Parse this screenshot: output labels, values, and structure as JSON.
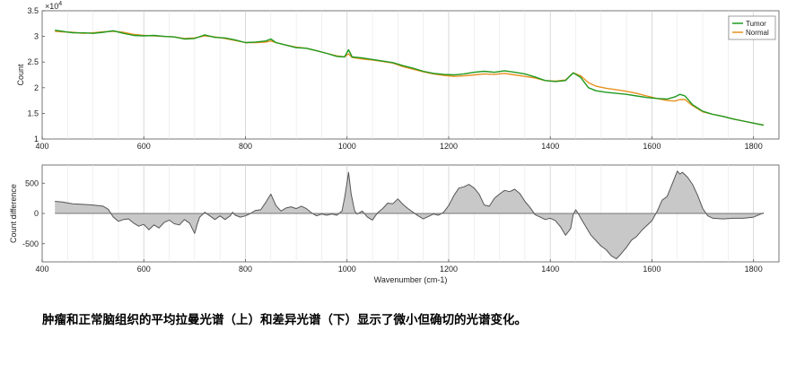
{
  "caption": "肿瘤和正常脑组织的平均拉曼光谱（上）和差异光谱（下）显示了微小但确切的光谱变化。",
  "chart_data": [
    {
      "type": "line",
      "xlabel": "",
      "ylabel": "Count",
      "xlim": [
        400,
        1850
      ],
      "ylim": [
        1,
        3.5
      ],
      "y_multiplier": "x10^4",
      "xticks": [
        "400",
        "600",
        "800",
        "1000",
        "1200",
        "1400",
        "1600",
        "1800"
      ],
      "yticks": [
        "1",
        "1.5",
        "2",
        "2.5",
        "3",
        "3.5"
      ],
      "grid": "vertical",
      "legend_position": "top-right",
      "series": [
        {
          "name": "Tumor",
          "color": "#1f9a1f",
          "points": [
            [
              425,
              3.12
            ],
            [
              440,
              3.1
            ],
            [
              460,
              3.07
            ],
            [
              480,
              3.07
            ],
            [
              500,
              3.06
            ],
            [
              520,
              3.08
            ],
            [
              540,
              3.11
            ],
            [
              560,
              3.06
            ],
            [
              580,
              3.02
            ],
            [
              600,
              3.01
            ],
            [
              620,
              3.02
            ],
            [
              640,
              3.0
            ],
            [
              660,
              2.99
            ],
            [
              680,
              2.95
            ],
            [
              700,
              2.96
            ],
            [
              720,
              3.03
            ],
            [
              740,
              2.98
            ],
            [
              760,
              2.97
            ],
            [
              780,
              2.93
            ],
            [
              800,
              2.88
            ],
            [
              820,
              2.89
            ],
            [
              840,
              2.91
            ],
            [
              850,
              2.95
            ],
            [
              860,
              2.88
            ],
            [
              880,
              2.83
            ],
            [
              900,
              2.78
            ],
            [
              920,
              2.77
            ],
            [
              940,
              2.72
            ],
            [
              960,
              2.67
            ],
            [
              980,
              2.61
            ],
            [
              995,
              2.6
            ],
            [
              1003,
              2.74
            ],
            [
              1010,
              2.6
            ],
            [
              1030,
              2.58
            ],
            [
              1050,
              2.55
            ],
            [
              1070,
              2.52
            ],
            [
              1090,
              2.49
            ],
            [
              1110,
              2.43
            ],
            [
              1130,
              2.38
            ],
            [
              1150,
              2.32
            ],
            [
              1170,
              2.28
            ],
            [
              1190,
              2.26
            ],
            [
              1210,
              2.25
            ],
            [
              1230,
              2.27
            ],
            [
              1250,
              2.3
            ],
            [
              1270,
              2.32
            ],
            [
              1290,
              2.3
            ],
            [
              1310,
              2.33
            ],
            [
              1330,
              2.3
            ],
            [
              1350,
              2.27
            ],
            [
              1370,
              2.21
            ],
            [
              1390,
              2.14
            ],
            [
              1410,
              2.12
            ],
            [
              1430,
              2.14
            ],
            [
              1445,
              2.29
            ],
            [
              1460,
              2.2
            ],
            [
              1475,
              2.0
            ],
            [
              1490,
              1.94
            ],
            [
              1510,
              1.91
            ],
            [
              1530,
              1.89
            ],
            [
              1550,
              1.87
            ],
            [
              1570,
              1.84
            ],
            [
              1590,
              1.81
            ],
            [
              1610,
              1.79
            ],
            [
              1630,
              1.78
            ],
            [
              1645,
              1.82
            ],
            [
              1655,
              1.87
            ],
            [
              1665,
              1.84
            ],
            [
              1680,
              1.67
            ],
            [
              1700,
              1.54
            ],
            [
              1720,
              1.48
            ],
            [
              1740,
              1.44
            ],
            [
              1760,
              1.39
            ],
            [
              1780,
              1.35
            ],
            [
              1800,
              1.31
            ],
            [
              1820,
              1.27
            ]
          ]
        },
        {
          "name": "Normal",
          "color": "#e8901e",
          "points": [
            [
              425,
              3.1
            ],
            [
              440,
              3.09
            ],
            [
              460,
              3.08
            ],
            [
              480,
              3.06
            ],
            [
              500,
              3.07
            ],
            [
              520,
              3.09
            ],
            [
              540,
              3.1
            ],
            [
              560,
              3.08
            ],
            [
              580,
              3.04
            ],
            [
              600,
              3.02
            ],
            [
              620,
              3.01
            ],
            [
              640,
              3.0
            ],
            [
              660,
              2.99
            ],
            [
              680,
              2.96
            ],
            [
              700,
              2.97
            ],
            [
              720,
              3.01
            ],
            [
              740,
              2.99
            ],
            [
              760,
              2.96
            ],
            [
              780,
              2.92
            ],
            [
              800,
              2.88
            ],
            [
              820,
              2.88
            ],
            [
              840,
              2.89
            ],
            [
              850,
              2.91
            ],
            [
              860,
              2.88
            ],
            [
              880,
              2.83
            ],
            [
              900,
              2.79
            ],
            [
              920,
              2.77
            ],
            [
              940,
              2.72
            ],
            [
              960,
              2.67
            ],
            [
              980,
              2.62
            ],
            [
              995,
              2.6
            ],
            [
              1003,
              2.66
            ],
            [
              1010,
              2.59
            ],
            [
              1030,
              2.56
            ],
            [
              1050,
              2.54
            ],
            [
              1070,
              2.51
            ],
            [
              1090,
              2.48
            ],
            [
              1110,
              2.41
            ],
            [
              1130,
              2.36
            ],
            [
              1150,
              2.31
            ],
            [
              1170,
              2.27
            ],
            [
              1190,
              2.24
            ],
            [
              1210,
              2.22
            ],
            [
              1230,
              2.23
            ],
            [
              1250,
              2.25
            ],
            [
              1270,
              2.27
            ],
            [
              1290,
              2.26
            ],
            [
              1310,
              2.28
            ],
            [
              1330,
              2.25
            ],
            [
              1350,
              2.22
            ],
            [
              1370,
              2.19
            ],
            [
              1390,
              2.14
            ],
            [
              1410,
              2.13
            ],
            [
              1430,
              2.15
            ],
            [
              1445,
              2.29
            ],
            [
              1460,
              2.23
            ],
            [
              1475,
              2.1
            ],
            [
              1490,
              2.03
            ],
            [
              1510,
              1.99
            ],
            [
              1530,
              1.96
            ],
            [
              1550,
              1.93
            ],
            [
              1570,
              1.89
            ],
            [
              1590,
              1.84
            ],
            [
              1610,
              1.79
            ],
            [
              1630,
              1.75
            ],
            [
              1645,
              1.74
            ],
            [
              1655,
              1.77
            ],
            [
              1665,
              1.77
            ],
            [
              1680,
              1.65
            ],
            [
              1700,
              1.53
            ],
            [
              1720,
              1.48
            ],
            [
              1740,
              1.44
            ],
            [
              1760,
              1.39
            ],
            [
              1780,
              1.35
            ],
            [
              1800,
              1.31
            ],
            [
              1820,
              1.27
            ]
          ]
        }
      ]
    },
    {
      "type": "area",
      "xlabel": "Wavenumber (cm-1)",
      "ylabel": "Count difference",
      "xlim": [
        400,
        1850
      ],
      "ylim": [
        -800,
        800
      ],
      "xticks": [
        "400",
        "600",
        "800",
        "1000",
        "1200",
        "1400",
        "1600",
        "1800"
      ],
      "yticks": [
        "-500",
        "0",
        "500"
      ],
      "ytick_values": [
        -500,
        0,
        500
      ],
      "grid": "vertical",
      "fill_color": "#c8c8c8",
      "line_color": "#555555",
      "points": [
        [
          425,
          200
        ],
        [
          440,
          190
        ],
        [
          460,
          160
        ],
        [
          480,
          150
        ],
        [
          500,
          140
        ],
        [
          520,
          120
        ],
        [
          530,
          70
        ],
        [
          540,
          -60
        ],
        [
          550,
          -130
        ],
        [
          560,
          -100
        ],
        [
          570,
          -90
        ],
        [
          580,
          -160
        ],
        [
          590,
          -210
        ],
        [
          600,
          -180
        ],
        [
          610,
          -270
        ],
        [
          620,
          -190
        ],
        [
          630,
          -240
        ],
        [
          640,
          -150
        ],
        [
          650,
          -110
        ],
        [
          660,
          -170
        ],
        [
          670,
          -190
        ],
        [
          680,
          -100
        ],
        [
          690,
          -160
        ],
        [
          700,
          -330
        ],
        [
          705,
          -180
        ],
        [
          710,
          -60
        ],
        [
          720,
          20
        ],
        [
          730,
          -40
        ],
        [
          740,
          -100
        ],
        [
          750,
          -40
        ],
        [
          760,
          -100
        ],
        [
          770,
          -40
        ],
        [
          775,
          20
        ],
        [
          780,
          -30
        ],
        [
          790,
          -60
        ],
        [
          800,
          -40
        ],
        [
          810,
          0
        ],
        [
          820,
          50
        ],
        [
          830,
          60
        ],
        [
          840,
          180
        ],
        [
          850,
          320
        ],
        [
          860,
          130
        ],
        [
          870,
          40
        ],
        [
          880,
          90
        ],
        [
          890,
          110
        ],
        [
          900,
          80
        ],
        [
          910,
          120
        ],
        [
          920,
          80
        ],
        [
          930,
          10
        ],
        [
          940,
          -40
        ],
        [
          950,
          -10
        ],
        [
          960,
          -30
        ],
        [
          970,
          -10
        ],
        [
          980,
          -30
        ],
        [
          990,
          40
        ],
        [
          996,
          300
        ],
        [
          1003,
          680
        ],
        [
          1008,
          320
        ],
        [
          1015,
          40
        ],
        [
          1020,
          -10
        ],
        [
          1030,
          40
        ],
        [
          1040,
          -60
        ],
        [
          1050,
          -110
        ],
        [
          1060,
          10
        ],
        [
          1070,
          80
        ],
        [
          1080,
          170
        ],
        [
          1090,
          160
        ],
        [
          1100,
          240
        ],
        [
          1110,
          150
        ],
        [
          1120,
          80
        ],
        [
          1130,
          20
        ],
        [
          1140,
          -40
        ],
        [
          1150,
          -90
        ],
        [
          1160,
          -50
        ],
        [
          1170,
          -10
        ],
        [
          1180,
          -30
        ],
        [
          1190,
          20
        ],
        [
          1200,
          130
        ],
        [
          1210,
          290
        ],
        [
          1220,
          420
        ],
        [
          1230,
          440
        ],
        [
          1240,
          480
        ],
        [
          1250,
          420
        ],
        [
          1260,
          320
        ],
        [
          1270,
          140
        ],
        [
          1280,
          120
        ],
        [
          1290,
          250
        ],
        [
          1300,
          320
        ],
        [
          1310,
          380
        ],
        [
          1320,
          360
        ],
        [
          1330,
          400
        ],
        [
          1340,
          330
        ],
        [
          1350,
          200
        ],
        [
          1360,
          100
        ],
        [
          1370,
          -20
        ],
        [
          1380,
          -60
        ],
        [
          1390,
          -100
        ],
        [
          1400,
          -80
        ],
        [
          1410,
          -120
        ],
        [
          1420,
          -220
        ],
        [
          1430,
          -360
        ],
        [
          1440,
          -250
        ],
        [
          1445,
          -20
        ],
        [
          1450,
          60
        ],
        [
          1455,
          0
        ],
        [
          1460,
          -80
        ],
        [
          1470,
          -220
        ],
        [
          1480,
          -360
        ],
        [
          1490,
          -450
        ],
        [
          1500,
          -540
        ],
        [
          1510,
          -600
        ],
        [
          1520,
          -700
        ],
        [
          1530,
          -750
        ],
        [
          1540,
          -660
        ],
        [
          1550,
          -560
        ],
        [
          1560,
          -440
        ],
        [
          1570,
          -380
        ],
        [
          1580,
          -280
        ],
        [
          1590,
          -200
        ],
        [
          1600,
          -120
        ],
        [
          1610,
          30
        ],
        [
          1620,
          220
        ],
        [
          1630,
          280
        ],
        [
          1640,
          490
        ],
        [
          1650,
          700
        ],
        [
          1655,
          650
        ],
        [
          1660,
          680
        ],
        [
          1670,
          600
        ],
        [
          1680,
          480
        ],
        [
          1690,
          300
        ],
        [
          1700,
          80
        ],
        [
          1710,
          -40
        ],
        [
          1720,
          -80
        ],
        [
          1740,
          -90
        ],
        [
          1760,
          -80
        ],
        [
          1780,
          -80
        ],
        [
          1800,
          -60
        ],
        [
          1820,
          10
        ]
      ]
    }
  ]
}
